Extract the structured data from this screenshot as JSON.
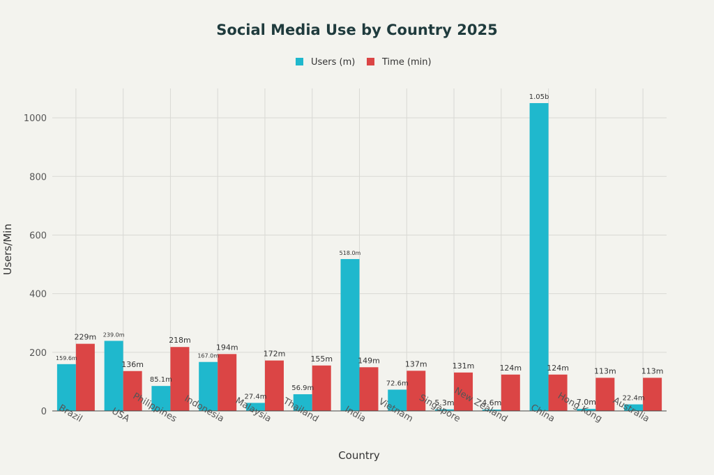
{
  "chart_data": {
    "type": "bar",
    "title": "Social Media Use by Country 2025",
    "xlabel": "Country",
    "ylabel": "Users/Min",
    "ylim": [
      0,
      1100
    ],
    "yticks": [
      0,
      200,
      400,
      600,
      800,
      1000
    ],
    "grid": true,
    "legend_position": "top-center",
    "categories": [
      "Brazil",
      "USA",
      "Philippines",
      "Indonesia",
      "Malaysia",
      "Thailand",
      "India",
      "Vietnam",
      "Singapore",
      "New Zealand",
      "China",
      "Hong Kong",
      "Australia"
    ],
    "series": [
      {
        "name": "Users (m)",
        "color": "#1fb8cd",
        "values": [
          159.6,
          239.0,
          85.1,
          167.0,
          27.4,
          56.9,
          518.0,
          72.6,
          5.3,
          4.6,
          1050,
          7.0,
          22.4
        ],
        "labels": [
          "159.6m",
          "239.0m",
          "85.1m",
          "167.0m",
          "27.4m",
          "56.9m",
          "518.0m",
          "72.6m",
          "5.3m",
          "4.6m",
          "1.05b",
          "7.0m",
          "22.4m"
        ]
      },
      {
        "name": "Time (min)",
        "color": "#db4545",
        "values": [
          229,
          136,
          218,
          194,
          172,
          155,
          149,
          137,
          131,
          124,
          124,
          113,
          113
        ],
        "labels": [
          "229m",
          "136m",
          "218m",
          "194m",
          "172m",
          "155m",
          "149m",
          "137m",
          "131m",
          "124m",
          "124m",
          "113m",
          "113m"
        ]
      }
    ]
  }
}
